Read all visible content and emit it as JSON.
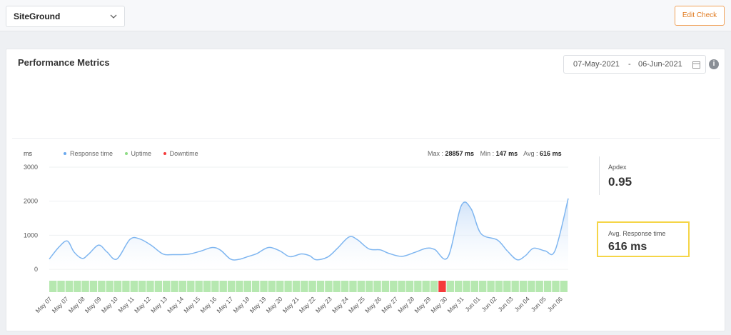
{
  "header": {
    "selected_site": "SiteGround",
    "edit_label": "Edit Check"
  },
  "panel": {
    "title": "Performance Metrics",
    "date_from": "07-May-2021",
    "date_separator": "-",
    "date_to": "06-Jun-2021",
    "info_glyph": "i"
  },
  "chart_data": {
    "type": "area",
    "ylabel": "ms",
    "ylim": [
      0,
      3000
    ],
    "yticks": [
      "3000",
      "2000",
      "1000",
      "0"
    ],
    "legend": {
      "response": "Response time",
      "uptime": "Uptime",
      "downtime": "Downtime"
    },
    "stats": {
      "max_label": "Max :",
      "max_value": "28857 ms",
      "min_label": "Min :",
      "min_value": "147 ms",
      "avg_label": "Avg :",
      "avg_value": "616 ms"
    },
    "categories": [
      "May 07",
      "May 07",
      "May 08",
      "May 09",
      "May 10",
      "May 11",
      "May 12",
      "May 13",
      "May 14",
      "May 15",
      "May 16",
      "May 17",
      "May 18",
      "May 19",
      "May 20",
      "May 21",
      "May 22",
      "May 23",
      "May 24",
      "May 25",
      "May 26",
      "May 27",
      "May 28",
      "May 29",
      "May 30",
      "May 31",
      "Jun 01",
      "Jun 02",
      "Jun 03",
      "Jun 04",
      "Jun 05",
      "Jun 06"
    ],
    "response_time": [
      [
        0,
        300
      ],
      [
        0.6,
        660
      ],
      [
        1.1,
        830
      ],
      [
        1.5,
        510
      ],
      [
        2.0,
        320
      ],
      [
        2.4,
        450
      ],
      [
        3.0,
        710
      ],
      [
        3.5,
        510
      ],
      [
        4.1,
        300
      ],
      [
        4.9,
        880
      ],
      [
        5.5,
        890
      ],
      [
        6.2,
        700
      ],
      [
        6.9,
        450
      ],
      [
        7.5,
        430
      ],
      [
        8.4,
        440
      ],
      [
        9.1,
        520
      ],
      [
        9.9,
        640
      ],
      [
        10.4,
        560
      ],
      [
        11.0,
        300
      ],
      [
        11.5,
        290
      ],
      [
        12.1,
        380
      ],
      [
        12.6,
        460
      ],
      [
        13.3,
        640
      ],
      [
        14.0,
        540
      ],
      [
        14.6,
        370
      ],
      [
        15.3,
        450
      ],
      [
        15.8,
        400
      ],
      [
        16.2,
        280
      ],
      [
        16.9,
        360
      ],
      [
        17.5,
        620
      ],
      [
        18.2,
        950
      ],
      [
        18.7,
        870
      ],
      [
        19.4,
        600
      ],
      [
        20.1,
        570
      ],
      [
        20.6,
        470
      ],
      [
        21.4,
        380
      ],
      [
        22.2,
        500
      ],
      [
        22.9,
        620
      ],
      [
        23.4,
        580
      ],
      [
        24.2,
        360
      ],
      [
        25.0,
        1860
      ],
      [
        25.6,
        1780
      ],
      [
        26.2,
        1050
      ],
      [
        27.2,
        860
      ],
      [
        27.8,
        540
      ],
      [
        28.4,
        280
      ],
      [
        28.9,
        400
      ],
      [
        29.4,
        620
      ],
      [
        30.1,
        540
      ],
      [
        30.7,
        550
      ],
      [
        31.5,
        2080
      ]
    ],
    "status": [
      "up",
      "up",
      "up",
      "up",
      "up",
      "up",
      "up",
      "up",
      "up",
      "up",
      "up",
      "up",
      "up",
      "up",
      "up",
      "up",
      "up",
      "up",
      "up",
      "up",
      "up",
      "up",
      "up",
      "up",
      "up",
      "up",
      "up",
      "up",
      "up",
      "up",
      "up",
      "up",
      "up",
      "up",
      "up",
      "up",
      "up",
      "up",
      "up",
      "up",
      "up",
      "up",
      "up",
      "up",
      "up",
      "up",
      "up",
      "up",
      "down",
      "up",
      "up",
      "up",
      "up",
      "up",
      "up",
      "up",
      "up",
      "up",
      "up",
      "up",
      "up",
      "up",
      "up",
      "up"
    ],
    "colors": {
      "line": "#7fb6f0",
      "fill_top": "#c8def8",
      "uptime": "#b6e8b0",
      "downtime": "#f53b3b",
      "grid": "#eef0f2"
    }
  },
  "metrics": {
    "apdex_label": "Apdex",
    "apdex_value": "0.95",
    "avg_label": "Avg. Response time",
    "avg_value": "616 ms"
  }
}
